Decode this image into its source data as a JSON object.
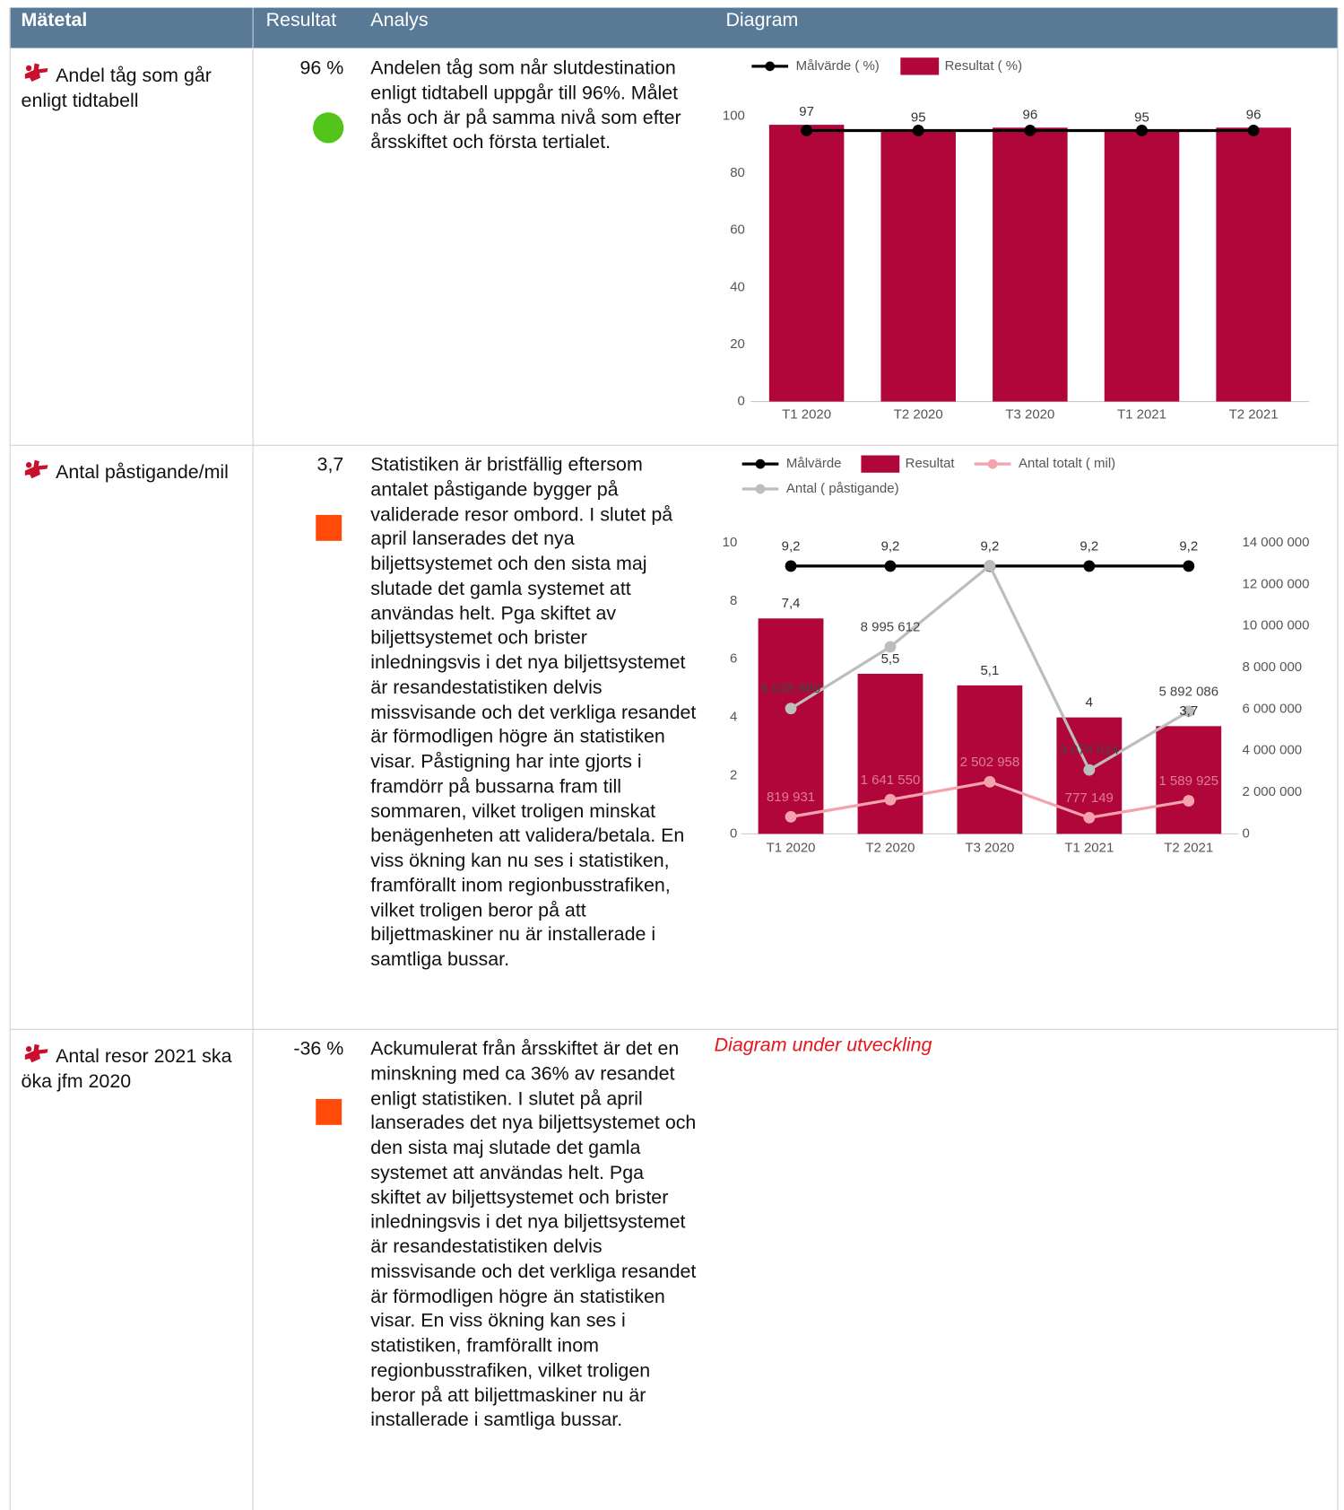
{
  "header": [
    "Mätetal",
    "Resultat",
    "Analys",
    "Diagram"
  ],
  "rows": [
    {
      "metric": "Andel tåg som går enligt tidtabell",
      "result": "96 %",
      "indicator": {
        "shape": "circle",
        "color": "#52c41a"
      },
      "analysis": "Andelen tåg som når slutdestination enligt tidtabell uppgår till 96%. Målet nås och är på samma nivå som efter årsskiftet och första tertialet."
    },
    {
      "metric": "Antal påstigande/mil",
      "result": "3,7",
      "indicator": {
        "shape": "square",
        "color": "#ff4a0a"
      },
      "analysis": "Statistiken är bristfällig eftersom antalet påstigande bygger på validerade resor ombord. I slutet på april lanserades det nya biljettsystemet och den sista maj slutade det gamla systemet att användas helt. Pga skiftet av biljettsystemet och brister inledningsvis i det nya biljettsystemet är resandestatistiken delvis missvisande och det verkliga resandet är förmodligen högre än statistiken visar. Påstigning har inte gjorts i framdörr på bussarna fram till sommaren, vilket troligen minskat benägenheten att validera/betala. En viss ökning kan nu ses i statistiken, framförallt inom regionbusstrafiken, vilket troligen beror på att biljettmaskiner nu är installerade i samtliga bussar."
    },
    {
      "metric": "Antal resor 2021 ska öka jfm 2020",
      "result": "-36 %",
      "indicator": {
        "shape": "square",
        "color": "#ff4a0a"
      },
      "analysis": "Ackumulerat från årsskiftet är det en minskning med ca 36% av resandet enligt statistiken. I slutet på april lanserades det nya biljettsystemet och den sista maj slutade det gamla systemet att användas helt. Pga skiftet av biljettsystemet och brister inledningsvis i det nya biljettsystemet är resandestatistiken delvis missvisande och det verkliga resandet är förmodligen högre än statistiken visar. En viss ökning kan ses i statistiken, framförallt inom regionbusstrafiken, vilket troligen beror på att biljettmaskiner nu är installerade i samtliga bussar.",
      "diagram_note": "Diagram under utveckling"
    }
  ],
  "chart_data": [
    {
      "type": "bar",
      "categories": [
        "T1 2020",
        "T2 2020",
        "T3 2020",
        "T1 2021",
        "T2 2021"
      ],
      "series": [
        {
          "name": "Målvärde ( %)",
          "type": "line",
          "color": "#000000",
          "values": [
            95,
            95,
            95,
            95,
            95
          ]
        },
        {
          "name": "Resultat ( %)",
          "type": "bar",
          "color": "#b1063a",
          "values": [
            97,
            95,
            96,
            95,
            96
          ],
          "data_labels": true,
          "label_color": "#333333"
        }
      ],
      "ylim": [
        0,
        100
      ],
      "yticks": [
        0,
        20,
        40,
        60,
        80,
        100
      ],
      "grid": false,
      "legend": "top"
    },
    {
      "type": "bar",
      "categories": [
        "T1 2020",
        "T2 2020",
        "T3 2020",
        "T1 2021",
        "T2 2021"
      ],
      "series": [
        {
          "name": "Målvärde",
          "type": "line",
          "color": "#000000",
          "values": [
            9.2,
            9.2,
            9.2,
            9.2,
            9.2
          ],
          "value_labels": [
            "9,2",
            "9,2",
            "9,2",
            "9,2",
            "9,2"
          ],
          "data_labels": true,
          "label_color": "#333333"
        },
        {
          "name": "Resultat",
          "type": "bar",
          "color": "#b1063a",
          "values": [
            7.4,
            5.5,
            5.1,
            4,
            3.7
          ],
          "value_labels": [
            "7,4",
            "5,5",
            "5,1",
            "4",
            "3,7"
          ],
          "data_labels": true,
          "label_color": "#333333"
        },
        {
          "name": "Antal totalt ( mil)",
          "type": "line",
          "axis": "y2",
          "color": "#f4a3ad",
          "values": [
            819931,
            1641550,
            2502958,
            777149,
            1589925
          ],
          "value_labels": [
            "819 931",
            "1 641 550",
            "2 502 958",
            "777 149",
            "1 589 925"
          ],
          "data_labels": true,
          "label_color": "#e07d8e"
        },
        {
          "name": "Antal ( påstigande)",
          "type": "line",
          "axis": "y2",
          "color": "#bdbdbd",
          "values": [
            6028880,
            8995612,
            12900000,
            3074014,
            5892086
          ],
          "value_labels": [
            "6 028 880",
            "8 995 612",
            null,
            "3 074 014",
            "5 892 086"
          ],
          "data_labels": true,
          "label_color": "#444444"
        }
      ],
      "ylim": [
        0,
        10
      ],
      "yticks": [
        0,
        2,
        4,
        6,
        8,
        10
      ],
      "y2lim": [
        0,
        14000000
      ],
      "y2ticks": [
        0,
        {
          "value": 2000000,
          "label": "2 000 000"
        },
        {
          "value": 4000000,
          "label": "4 000 000"
        },
        {
          "value": 6000000,
          "label": "6 000 000"
        },
        {
          "value": 8000000,
          "label": "8 000 000"
        },
        {
          "value": 10000000,
          "label": "10 000 000"
        },
        {
          "value": 12000000,
          "label": "12 000 000"
        },
        {
          "value": 14000000,
          "label": "14 000 000"
        }
      ],
      "grid": false,
      "legend": "top"
    }
  ]
}
